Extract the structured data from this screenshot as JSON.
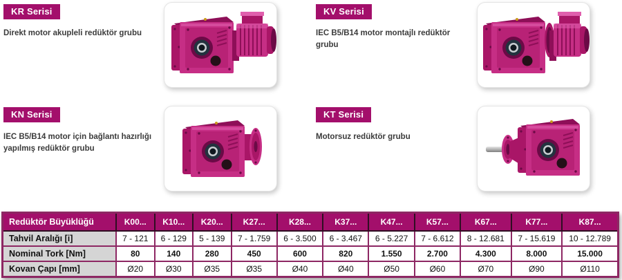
{
  "colors": {
    "magenta": "#A30F6B",
    "table_border": "#8D2763",
    "header_separator": "#2F0E22",
    "label_bg": "#D5D5D5",
    "text": "#3B3B3B",
    "product": {
      "pink": "#C62E85",
      "light": "#E05FAD",
      "mid": "#A91667",
      "dark": "#8E0F58",
      "deep": "#6B0A46",
      "navy": "#23333F",
      "steel": "#C8CDD1",
      "hole": "#10181F",
      "shaft_light": "#E8E8E8",
      "shaft_dark": "#7F7F7F"
    }
  },
  "sections": [
    {
      "id": "kr",
      "badge": "KR Serisi",
      "description": "Direkt motor akupleli redüktör grubu",
      "image": "gearbox-with-direct-motor"
    },
    {
      "id": "kv",
      "badge": "KV Serisi",
      "description": "IEC B5/B14 motor montajlı redüktör grubu",
      "image": "gearbox-with-iec-motor"
    },
    {
      "id": "kn",
      "badge": "KN Serisi",
      "description": "IEC B5/B14 motor için bağlantı hazırlığı yapılmış redüktör grubu",
      "image": "gearbox-with-input-flange"
    },
    {
      "id": "kt",
      "badge": "KT Serisi",
      "description": "Motorsuz redüktör grubu",
      "image": "gearbox-with-input-shaft"
    }
  ],
  "table": {
    "header_label": "Redüktör Büyüklüğü",
    "columns": [
      "K00...",
      "K10...",
      "K20...",
      "K27...",
      "K28...",
      "K37...",
      "K47...",
      "K57...",
      "K67...",
      "K77...",
      "K87..."
    ],
    "rows": [
      {
        "label": "Tahvil Aralığı [i]",
        "bold_values": false,
        "values": [
          "7 - 121",
          "6 - 129",
          "5 - 139",
          "7 - 1.759",
          "6 - 3.500",
          "6 - 3.467",
          "6 - 5.227",
          "7 - 6.612",
          "8 - 12.681",
          "7 - 15.619",
          "10 - 12.789"
        ]
      },
      {
        "label": "Nominal Tork [Nm]",
        "bold_values": true,
        "values": [
          "80",
          "140",
          "280",
          "450",
          "600",
          "820",
          "1.550",
          "2.700",
          "4.300",
          "8.000",
          "15.000"
        ]
      },
      {
        "label": "Kovan Çapı [mm]",
        "bold_values": false,
        "values": [
          "Ø20",
          "Ø30",
          "Ø35",
          "Ø35",
          "Ø40",
          "Ø40",
          "Ø50",
          "Ø60",
          "Ø70",
          "Ø90",
          "Ø110"
        ]
      }
    ]
  }
}
